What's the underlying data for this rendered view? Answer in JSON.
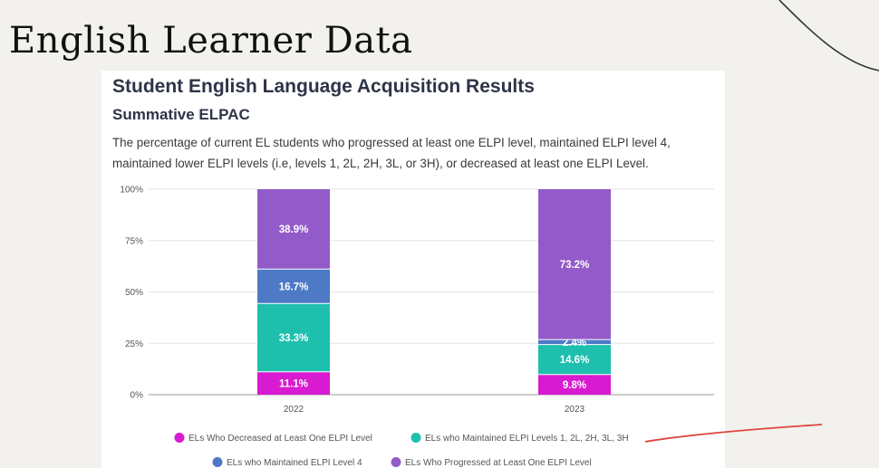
{
  "slide": {
    "title": "English Learner Data"
  },
  "card": {
    "title": "Student English Language Acquisition Results",
    "subtitle": "Summative ELPAC",
    "description": "The percentage of current EL students who progressed at least one ELPI level, maintained ELPI level 4, maintained lower ELPI levels (i.e, levels 1, 2L, 2H, 3L, or 3H), or decreased at least one ELPI Level."
  },
  "chart_data": {
    "type": "bar",
    "stacked": true,
    "categories": [
      "2022",
      "2023"
    ],
    "y_ticks": [
      "0%",
      "25%",
      "50%",
      "75%",
      "100%"
    ],
    "ylim": [
      0,
      100
    ],
    "grid": true,
    "legend_position": "bottom",
    "series": [
      {
        "name": "ELs Who Decreased at Least One ELPI Level",
        "color": "#d81ad0",
        "values": [
          11.1,
          9.8
        ],
        "labels": [
          "11.1%",
          "9.8%"
        ]
      },
      {
        "name": "ELs who Maintained ELPI Levels 1, 2L, 2H, 3L, 3H",
        "color": "#1fbfae",
        "values": [
          33.3,
          14.6
        ],
        "labels": [
          "33.3%",
          "14.6%"
        ]
      },
      {
        "name": "ELs who Maintained ELPI Level 4",
        "color": "#4d79c7",
        "values": [
          16.7,
          2.4
        ],
        "labels": [
          "16.7%",
          "2.4%"
        ]
      },
      {
        "name": "ELs Who Progressed at Least One ELPI Level",
        "color": "#935bc9",
        "values": [
          38.9,
          73.2
        ],
        "labels": [
          "38.9%",
          "73.2%"
        ]
      }
    ]
  }
}
